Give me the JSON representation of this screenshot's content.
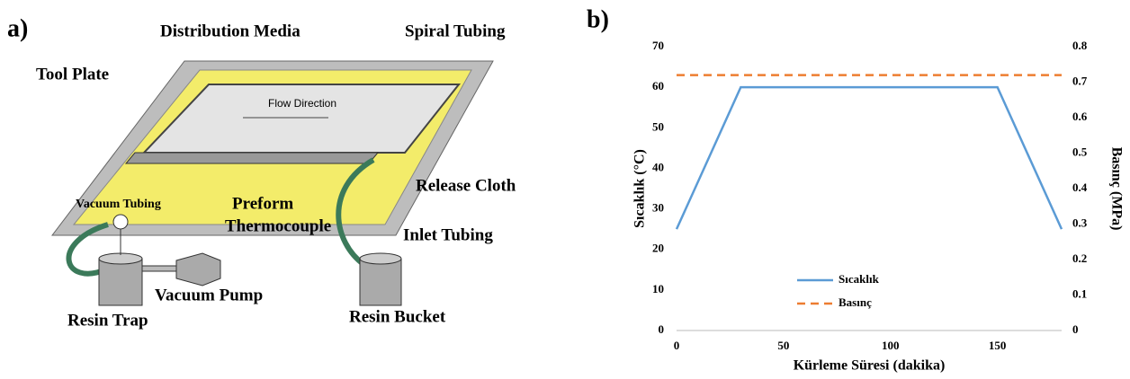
{
  "diagram": {
    "panel": "a)",
    "distribution_media": "Distribution Media",
    "spiral_tubing": "Spiral Tubing",
    "tool_plate": "Tool Plate",
    "flow_direction": "Flow Direction",
    "release_cloth": "Release Cloth",
    "vacuum_tubing": "Vacuum Tubing",
    "preform": "Preform",
    "thermocouple": "Thermocouple",
    "inlet_tubing": "Inlet Tubing",
    "vacuum_pump": "Vacuum Pump",
    "resin_trap": "Resin Trap",
    "resin_bucket": "Resin Bucket"
  },
  "chart_data": {
    "type": "line",
    "panel": "b)",
    "x_label": "Kürleme Süresi (dakika)",
    "y_label": "Sıcaklık (°C)",
    "y2_label": "Basınç (MPa)",
    "xlim": [
      0,
      180
    ],
    "xticks": [
      0,
      50,
      100,
      150
    ],
    "ylim": [
      0,
      70
    ],
    "yticks": [
      0,
      10,
      20,
      30,
      40,
      50,
      60,
      70
    ],
    "y2lim": [
      0,
      0.8
    ],
    "y2ticks": [
      0,
      0.1,
      0.2,
      0.3,
      0.4,
      0.5,
      0.6,
      0.7,
      0.8
    ],
    "legend": "lower center",
    "series": [
      {
        "name": "Sıcaklık",
        "color": "#5b9bd5",
        "dashed": false,
        "x": [
          0,
          30,
          150,
          180
        ],
        "values": [
          25,
          60,
          60,
          25
        ]
      },
      {
        "name": "Basınç",
        "color": "#ed7d31",
        "dashed": true,
        "axis": "y2",
        "x": [
          0,
          180
        ],
        "values": [
          0.72,
          0.72
        ]
      }
    ]
  }
}
